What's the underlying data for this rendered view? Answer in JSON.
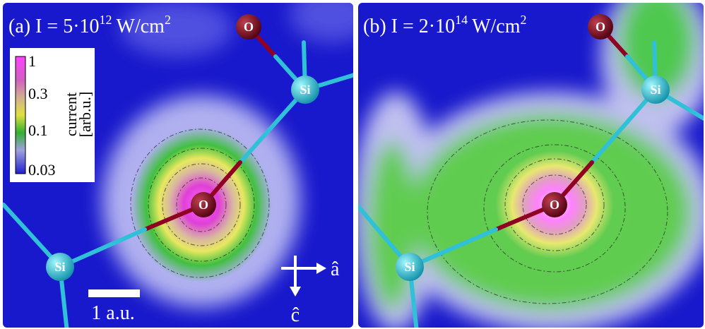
{
  "panels": [
    {
      "label": "(a) I = 5·10",
      "exponent": "12",
      "unit": "W/cm",
      "unit_exponent": "2",
      "atoms": [
        "O",
        "Si",
        "O",
        "Si"
      ]
    },
    {
      "label": "(b) I = 2·10",
      "exponent": "14",
      "unit": "W/cm",
      "unit_exponent": "2",
      "atoms": [
        "O",
        "Si",
        "O",
        "Si"
      ]
    }
  ],
  "colorbar": {
    "title": "current",
    "unit": "[arb.u.]",
    "ticks": [
      "1",
      "0.3",
      "0.1",
      "0.03"
    ]
  },
  "scale_bar": "1 a.u.",
  "axes": {
    "a": "â",
    "c": "ĉ"
  }
}
